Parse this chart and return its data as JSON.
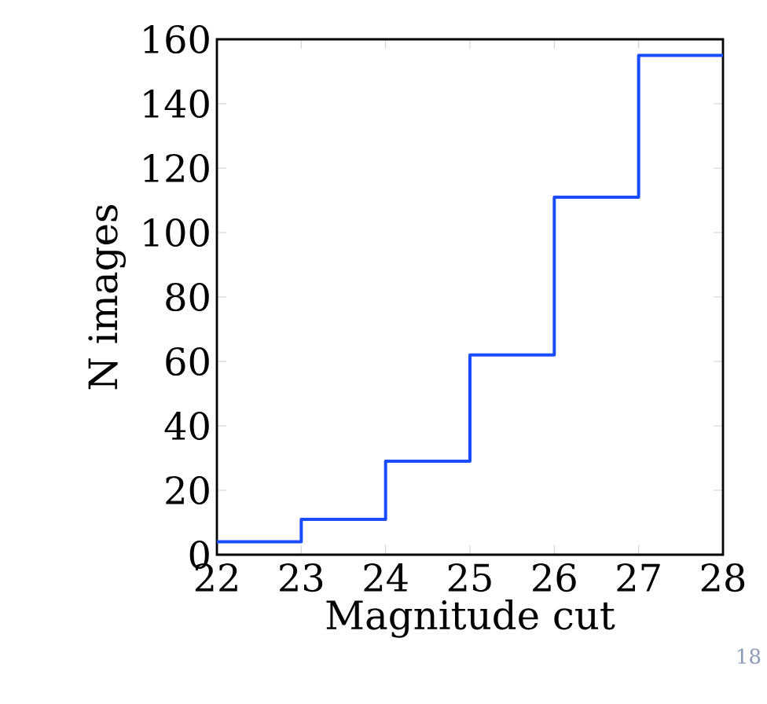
{
  "chart_data": {
    "type": "step",
    "x": [
      22,
      23,
      24,
      25,
      26,
      27,
      28
    ],
    "values": [
      4,
      11,
      29,
      62,
      111,
      155,
      155
    ],
    "color": "#1a4cff",
    "xlim": [
      22,
      28
    ],
    "ylim": [
      0,
      160
    ],
    "xticks": [
      22,
      23,
      24,
      25,
      26,
      27,
      28
    ],
    "yticks": [
      0,
      20,
      40,
      60,
      80,
      100,
      120,
      140,
      160
    ],
    "xlabel": "Magnitude cut",
    "ylabel": "N images",
    "annotations": [
      "18"
    ]
  }
}
